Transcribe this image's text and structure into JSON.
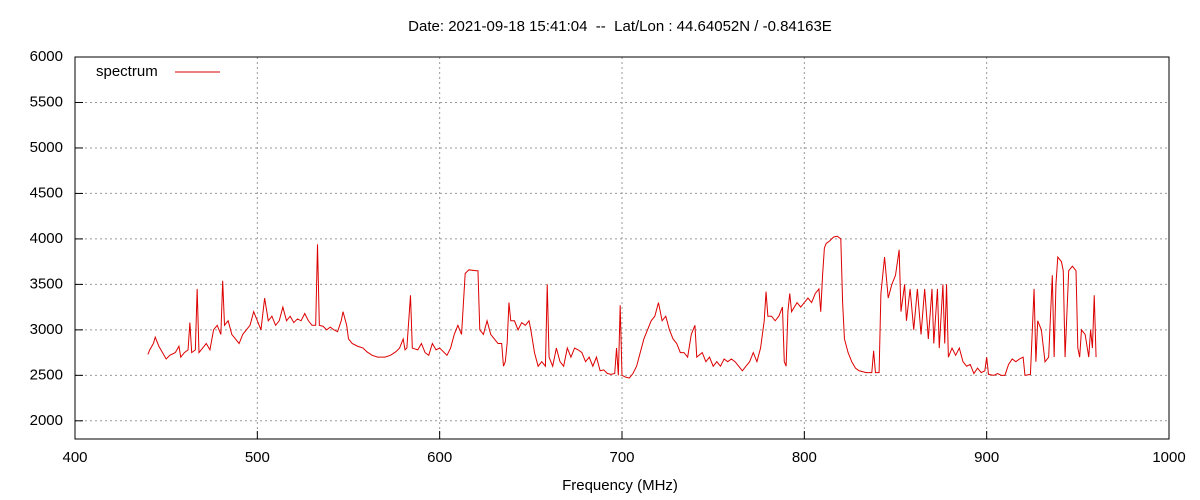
{
  "chart_data": {
    "type": "line",
    "title": "Date: 2021-09-18 15:41:04  --  Lat/Lon : 44.64052N / -0.84163E",
    "xlabel": "Frequency (MHz)",
    "xlim": [
      400,
      1000
    ],
    "xticks": [
      400,
      500,
      600,
      700,
      800,
      900,
      1000
    ],
    "ylim": [
      1800,
      6000
    ],
    "yticks": [
      2000,
      2500,
      3000,
      3500,
      4000,
      4500,
      5000,
      5500,
      6000
    ],
    "grid": true,
    "legend": "top-left",
    "x": [
      440,
      441,
      443,
      444,
      446,
      448,
      450,
      452,
      455,
      457,
      458,
      460,
      462,
      463,
      464,
      466,
      467,
      468,
      470,
      472,
      474,
      476,
      478,
      480,
      481,
      482,
      484,
      486,
      488,
      490,
      492,
      494,
      496,
      498,
      500,
      502,
      504,
      506,
      508,
      510,
      512,
      514,
      516,
      518,
      520,
      522,
      524,
      526,
      528,
      530,
      532,
      533,
      534,
      536,
      538,
      540,
      542,
      544,
      546,
      547,
      549,
      550,
      552,
      555,
      558,
      560,
      563,
      566,
      570,
      573,
      576,
      578,
      580,
      581,
      582,
      584,
      585,
      588,
      590,
      592,
      594,
      596,
      598,
      600,
      602,
      604,
      606,
      608,
      610,
      612,
      614,
      616,
      620,
      621,
      622,
      624,
      626,
      628,
      630,
      632,
      634,
      635,
      636,
      637,
      638,
      639,
      641,
      643,
      645,
      647,
      649,
      650,
      652,
      654,
      656,
      658,
      659,
      660,
      662,
      664,
      666,
      668,
      670,
      672,
      674,
      676,
      678,
      680,
      682,
      684,
      686,
      688,
      690,
      692,
      694,
      696,
      697,
      698,
      699,
      700,
      702,
      704,
      706,
      708,
      710,
      712,
      714,
      716,
      718,
      720,
      722,
      724,
      726,
      728,
      730,
      732,
      734,
      736,
      738,
      740,
      741,
      744,
      746,
      748,
      750,
      752,
      754,
      756,
      758,
      760,
      762,
      764,
      766,
      768,
      770,
      772,
      774,
      776,
      778,
      779,
      780,
      782,
      784,
      786,
      788,
      789,
      790,
      791,
      792,
      793,
      796,
      798,
      800,
      802,
      804,
      806,
      808,
      809,
      810,
      811,
      812,
      814,
      816,
      818,
      820,
      821,
      822,
      824,
      826,
      828,
      830,
      834,
      837,
      838,
      839,
      841,
      842,
      844,
      846,
      848,
      850,
      852,
      853,
      855,
      856,
      858,
      860,
      862,
      864,
      866,
      868,
      870,
      871,
      873,
      874,
      876,
      877,
      878,
      879,
      881,
      883,
      885,
      887,
      889,
      891,
      893,
      895,
      897,
      899,
      900,
      901,
      904,
      906,
      908,
      910,
      912,
      914,
      916,
      918,
      920,
      921,
      924,
      926,
      927,
      928,
      930,
      932,
      934,
      936,
      937,
      938,
      939,
      941,
      942,
      943,
      945,
      947,
      949,
      950,
      951,
      952,
      954,
      956,
      957,
      958,
      959,
      960
    ],
    "series": [
      {
        "name": "spectrum",
        "color": "#dd0000",
        "values": [
          2730,
          2780,
          2850,
          2920,
          2820,
          2750,
          2680,
          2720,
          2750,
          2820,
          2700,
          2750,
          2780,
          3080,
          2750,
          2780,
          3450,
          2750,
          2800,
          2850,
          2780,
          3000,
          3050,
          2950,
          3540,
          3050,
          3100,
          2950,
          2900,
          2850,
          2950,
          3000,
          3050,
          3200,
          3100,
          3000,
          3350,
          3100,
          3150,
          3050,
          3100,
          3250,
          3100,
          3150,
          3080,
          3120,
          3100,
          3180,
          3100,
          3050,
          3050,
          3940,
          3050,
          3040,
          3000,
          3030,
          3000,
          2980,
          3100,
          3200,
          3050,
          2900,
          2850,
          2820,
          2800,
          2760,
          2720,
          2700,
          2700,
          2720,
          2760,
          2800,
          2900,
          2780,
          2800,
          3380,
          2800,
          2780,
          2850,
          2750,
          2720,
          2850,
          2780,
          2800,
          2760,
          2720,
          2800,
          2950,
          3050,
          2950,
          3620,
          3660,
          3650,
          3650,
          3000,
          2950,
          3100,
          2950,
          2900,
          2850,
          2850,
          2600,
          2650,
          2850,
          3300,
          3100,
          3100,
          3000,
          3080,
          3050,
          3100,
          3000,
          2750,
          2600,
          2650,
          2600,
          3500,
          2700,
          2600,
          2800,
          2650,
          2600,
          2800,
          2700,
          2800,
          2780,
          2750,
          2650,
          2700,
          2600,
          2700,
          2550,
          2560,
          2520,
          2510,
          2520,
          2800,
          2500,
          3270,
          2500,
          2480,
          2470,
          2520,
          2600,
          2750,
          2900,
          3000,
          3100,
          3150,
          3300,
          3100,
          3150,
          3000,
          2900,
          2850,
          2750,
          2750,
          2700,
          2950,
          3050,
          2700,
          2750,
          2650,
          2700,
          2600,
          2650,
          2600,
          2680,
          2650,
          2680,
          2650,
          2600,
          2550,
          2600,
          2650,
          2750,
          2650,
          2800,
          3100,
          3420,
          3150,
          3150,
          3100,
          3150,
          3250,
          2650,
          2600,
          3200,
          3400,
          3200,
          3300,
          3250,
          3300,
          3350,
          3300,
          3400,
          3450,
          3200,
          3600,
          3900,
          3950,
          3980,
          4020,
          4030,
          4000,
          3300,
          2900,
          2750,
          2650,
          2580,
          2550,
          2530,
          2530,
          2770,
          2530,
          2530,
          3400,
          3800,
          3350,
          3500,
          3600,
          3880,
          3200,
          3500,
          3100,
          3450,
          3000,
          3450,
          2950,
          3450,
          2900,
          3450,
          2850,
          3450,
          2800,
          3500,
          2850,
          3500,
          2700,
          2800,
          2720,
          2800,
          2650,
          2600,
          2620,
          2520,
          2580,
          2530,
          2550,
          2700,
          2510,
          2500,
          2520,
          2500,
          2500,
          2620,
          2680,
          2650,
          2680,
          2700,
          2500,
          2510,
          3450,
          2650,
          3100,
          3000,
          2650,
          2700,
          3600,
          2700,
          3500,
          3800,
          3750,
          3650,
          2700,
          3650,
          3700,
          3650,
          2800,
          2700,
          3000,
          2950,
          2700,
          3000,
          2800,
          3380,
          2700
        ]
      }
    ]
  }
}
